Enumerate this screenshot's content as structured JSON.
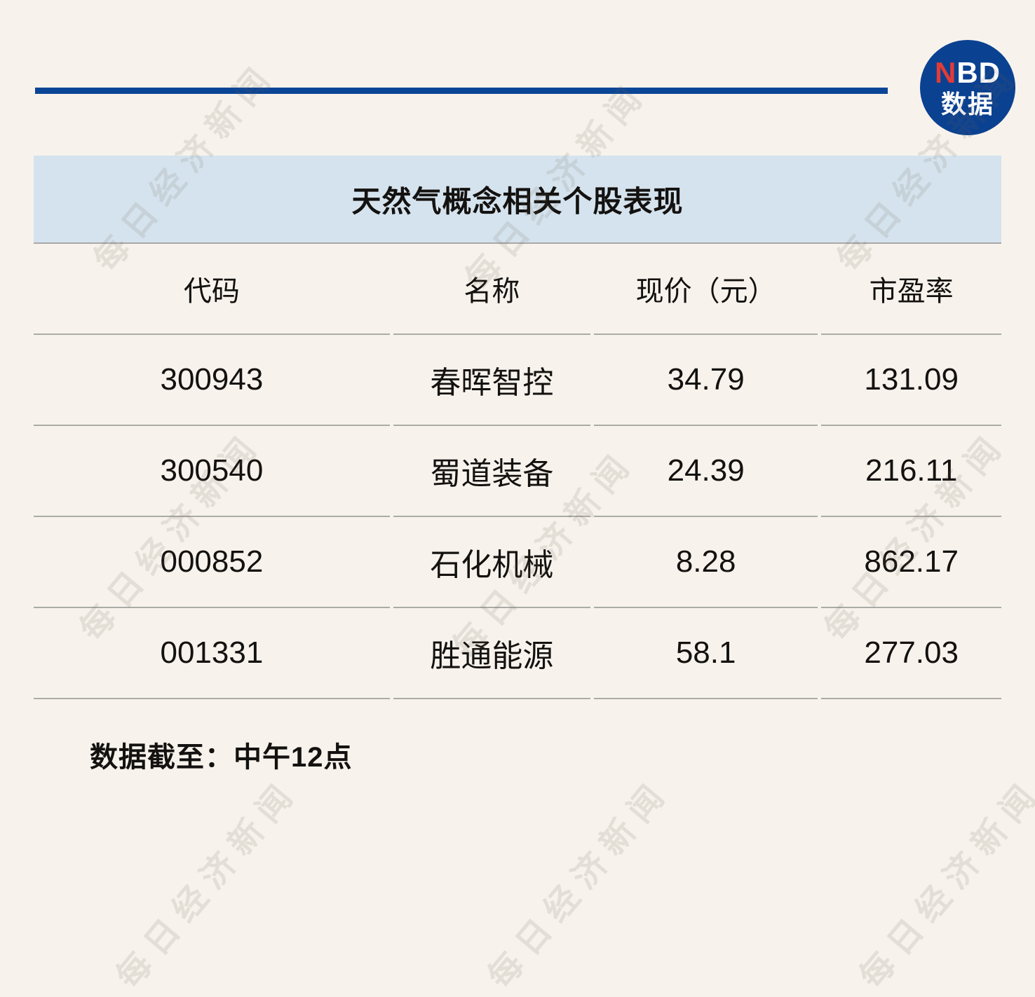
{
  "branding": {
    "logo_red": "N",
    "logo_rest": "BD",
    "logo_bottom": "数据"
  },
  "watermark": {
    "text": "每日经济新闻"
  },
  "colors": {
    "background": "#f7f3ec",
    "accent_blue": "#0b4596",
    "logo_blue": "#0b4191",
    "logo_red": "#e23b36",
    "title_bar_bg": "#d5e3ee",
    "border_gray": "#ababa6"
  },
  "chart_data": {
    "type": "table",
    "title": "天然气概念相关个股表现",
    "columns": [
      "代码",
      "名称",
      "现价（元）",
      "市盈率"
    ],
    "rows": [
      [
        "300943",
        "春晖智控",
        "34.79",
        "131.09"
      ],
      [
        "300540",
        "蜀道装备",
        "24.39",
        "216.11"
      ],
      [
        "000852",
        "石化机械",
        "8.28",
        "862.17"
      ],
      [
        "001331",
        "胜通能源",
        "58.1",
        "277.03"
      ]
    ],
    "note": "数据截至：中午12点"
  }
}
